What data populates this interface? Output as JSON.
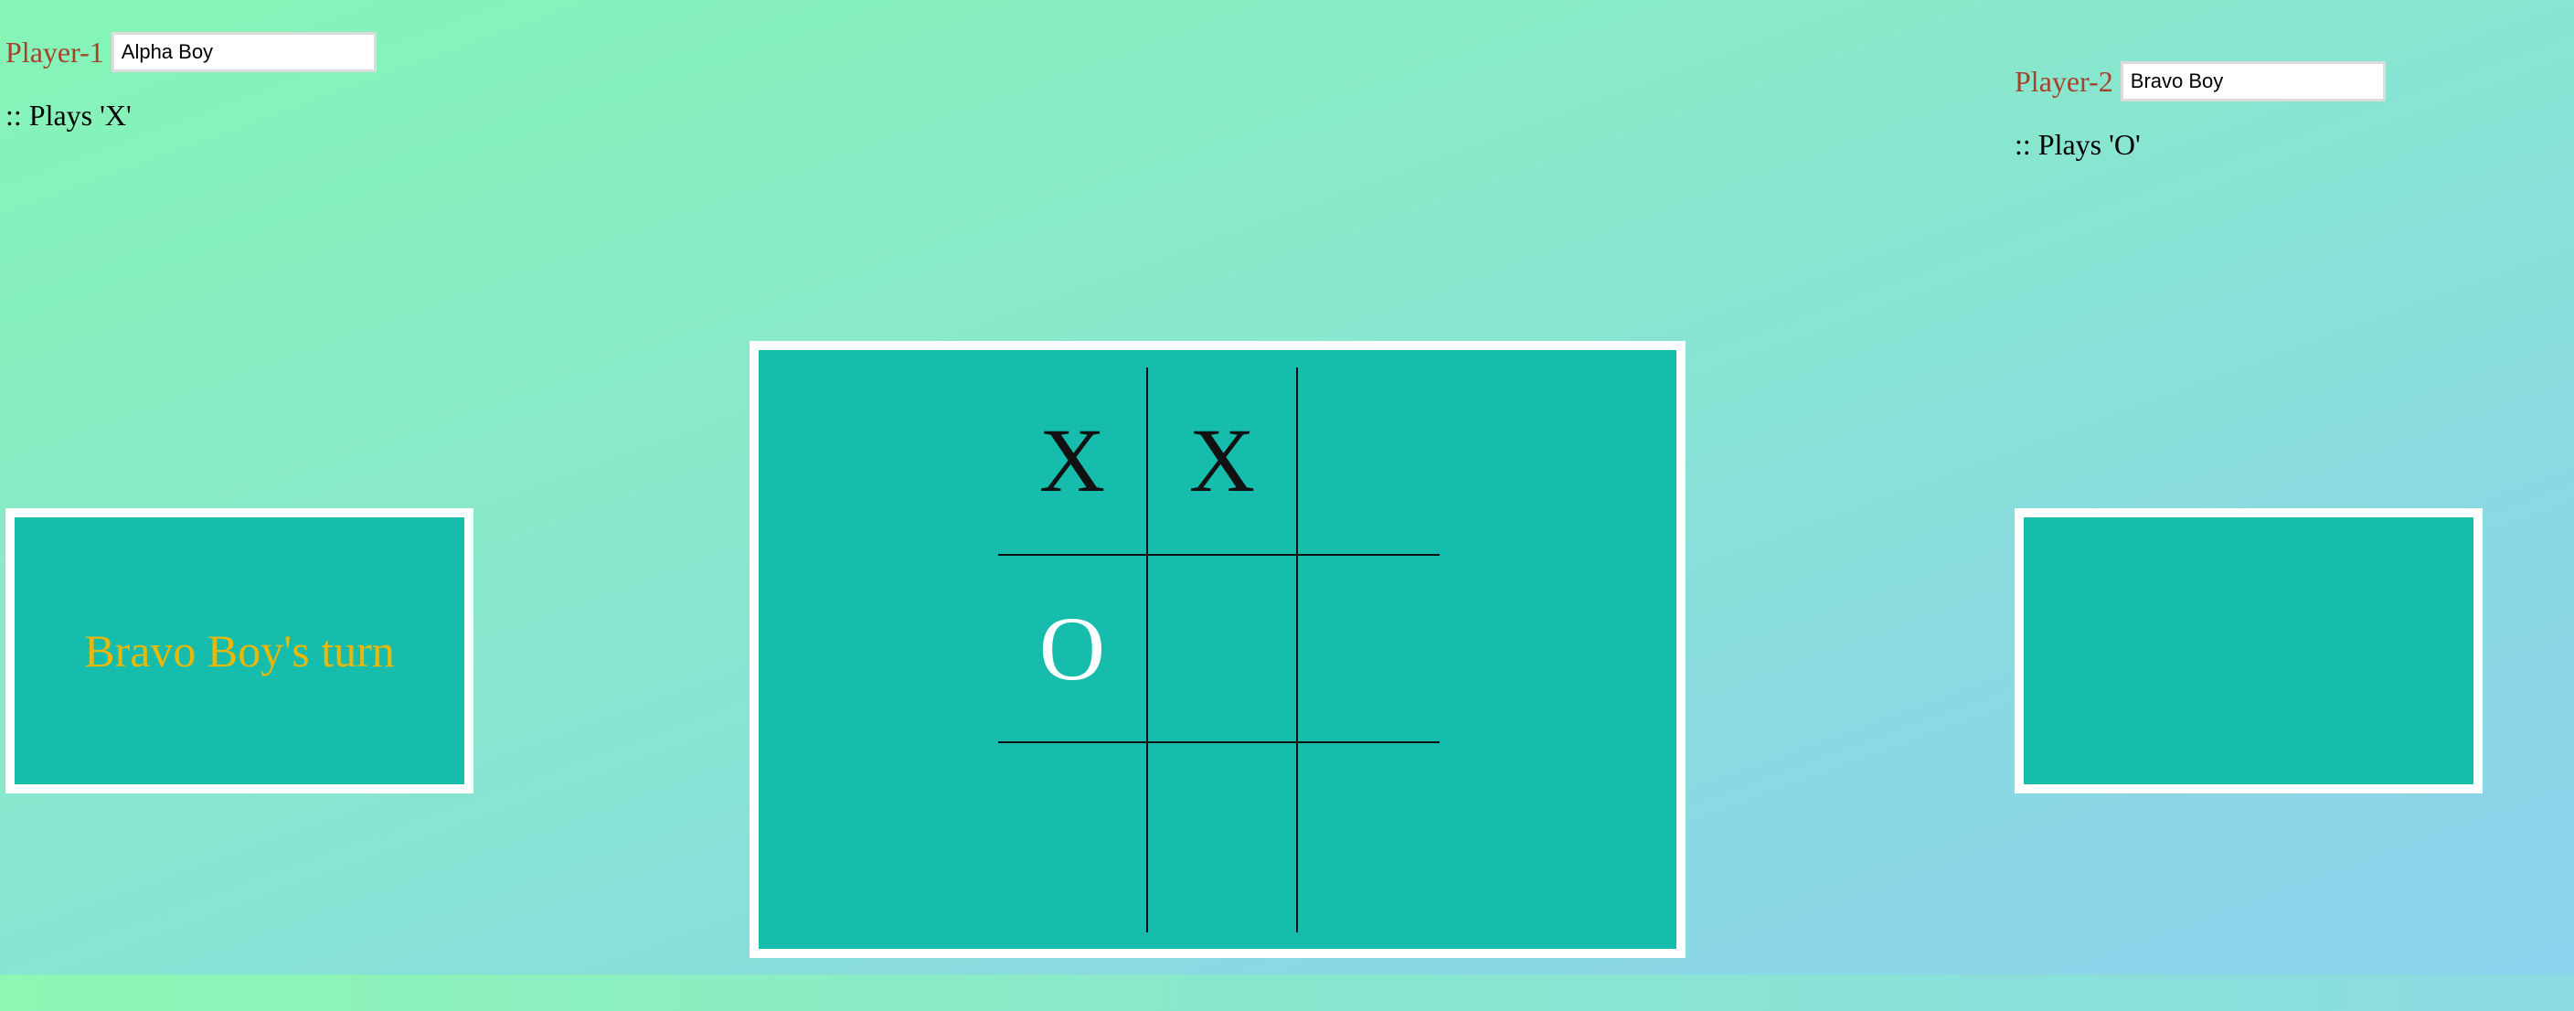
{
  "player1": {
    "label": "Player-1",
    "name": "Alpha Boy",
    "plays": ":: Plays 'X'"
  },
  "player2": {
    "label": "Player-2",
    "name": "Bravo Boy",
    "plays": ":: Plays 'O'"
  },
  "status": {
    "left_text": "Bravo Boy's turn",
    "right_text": ""
  },
  "board": {
    "cells": [
      "X",
      "X",
      "",
      "O",
      "",
      "",
      "",
      "",
      ""
    ]
  },
  "colors": {
    "board_bg": "#16bdad",
    "status_text": "#e8b80a",
    "player_label": "#a4432c",
    "x_mark": "#111111",
    "o_mark": "#ffffff"
  }
}
